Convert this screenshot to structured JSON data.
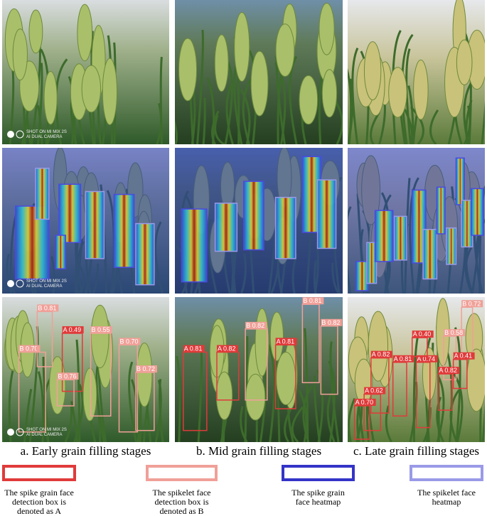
{
  "captions": [
    "a. Early grain filling stages",
    "b. Mid grain filling stages",
    "c. Late grain filling stages"
  ],
  "detections": [
    [
      "B 0.70",
      "B 0.81",
      "A 0.49",
      "B 0.55",
      "B 0.70",
      "B 0.72",
      "B 0.76"
    ],
    [
      "A 0.81",
      "A 0.82",
      "B 0.82",
      "A 0.81",
      "B 0.81",
      "B 0.82"
    ],
    [
      "A 0.82",
      "A 0.81",
      "A 0.74",
      "A 0.62",
      "A 0.70",
      "B 0.72",
      "B 0.58",
      "A 0.40",
      "A 0.41",
      "A 0.82"
    ]
  ],
  "watermark": [
    "SHOT ON MI MIX 2S",
    "AI DUAL CAMERA"
  ],
  "legend": [
    {
      "lines": [
        "The spike grain face",
        "detection box is",
        "denoted as A"
      ]
    },
    {
      "lines": [
        "The spikelet face",
        "detection box is",
        "denoted as B"
      ]
    },
    {
      "lines": [
        "The spike grain",
        "face heatmap"
      ]
    },
    {
      "lines": [
        "The spikelet face",
        "heatmap"
      ]
    }
  ]
}
